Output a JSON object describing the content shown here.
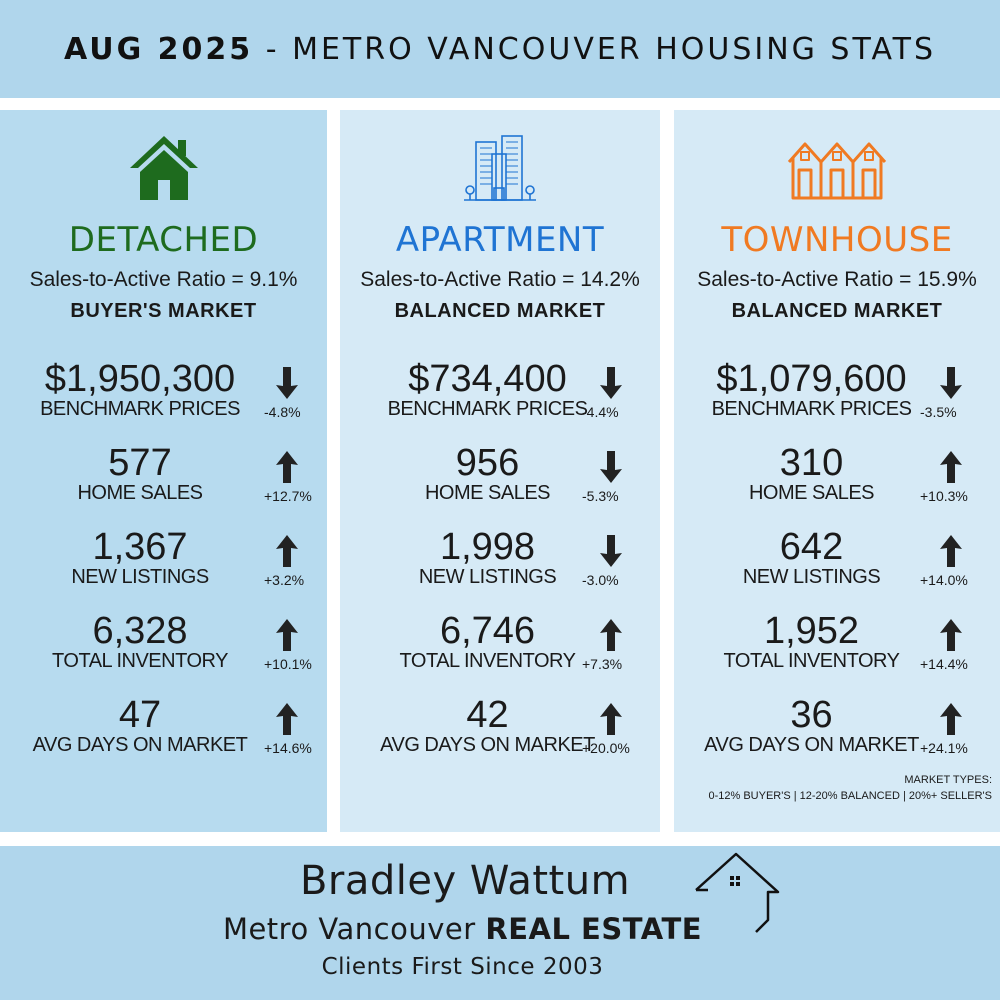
{
  "header": {
    "title_bold": "AUG 2025",
    "title_rest": " - METRO VANCOUVER HOUSING STATS"
  },
  "colors": {
    "header_bg": "#b0d6ec",
    "detached": "#1e6b1e",
    "apartment": "#1f74d3",
    "townhouse": "#f07a22",
    "arrow": "#222222"
  },
  "columns": [
    {
      "icon": "house-icon",
      "title": "DETACHED",
      "ratio": "Sales-to-Active Ratio = 9.1%",
      "market": "BUYER'S MARKET",
      "stats": [
        {
          "value": "$1,950,300",
          "label": "BENCHMARK PRICES",
          "direction": "down",
          "change": "-4.8%"
        },
        {
          "value": "577",
          "label": "HOME SALES",
          "direction": "up",
          "change": "+12.7%"
        },
        {
          "value": "1,367",
          "label": "NEW LISTINGS",
          "direction": "up",
          "change": "+3.2%"
        },
        {
          "value": "6,328",
          "label": "TOTAL INVENTORY",
          "direction": "up",
          "change": "+10.1%"
        },
        {
          "value": "47",
          "label": "AVG DAYS ON MARKET",
          "direction": "up",
          "change": "+14.6%"
        }
      ]
    },
    {
      "icon": "apartment-building-icon",
      "title": "APARTMENT",
      "ratio": "Sales-to-Active Ratio = 14.2%",
      "market": "BALANCED MARKET",
      "stats": [
        {
          "value": "$734,400",
          "label": "BENCHMARK PRICES",
          "direction": "down",
          "change": "-4.4%"
        },
        {
          "value": "956",
          "label": "HOME SALES",
          "direction": "down",
          "change": "-5.3%"
        },
        {
          "value": "1,998",
          "label": "NEW LISTINGS",
          "direction": "down",
          "change": "-3.0%"
        },
        {
          "value": "6,746",
          "label": "TOTAL INVENTORY",
          "direction": "up",
          "change": "+7.3%"
        },
        {
          "value": "42",
          "label": "AVG DAYS ON MARKET",
          "direction": "up",
          "change": "+20.0%"
        }
      ]
    },
    {
      "icon": "townhouse-icon",
      "title": "TOWNHOUSE",
      "ratio": "Sales-to-Active Ratio = 15.9%",
      "market": "BALANCED MARKET",
      "stats": [
        {
          "value": "$1,079,600",
          "label": "BENCHMARK PRICES",
          "direction": "down",
          "change": "-3.5%"
        },
        {
          "value": "310",
          "label": "HOME SALES",
          "direction": "up",
          "change": "+10.3%"
        },
        {
          "value": "642",
          "label": "NEW LISTINGS",
          "direction": "up",
          "change": "+14.0%"
        },
        {
          "value": "1,952",
          "label": "TOTAL INVENTORY",
          "direction": "up",
          "change": "+14.4%"
        },
        {
          "value": "36",
          "label": "AVG DAYS ON MARKET",
          "direction": "up",
          "change": "+24.1%"
        }
      ]
    }
  ],
  "legend": {
    "line1": "MARKET TYPES:",
    "line2": "0-12% BUYER'S | 12-20% BALANCED | 20%+ SELLER'S"
  },
  "footer": {
    "name": "Bradley Wattum",
    "line2_regular": "Metro Vancouver ",
    "line2_bold": "REAL ESTATE",
    "tagline": "Clients First Since 2003",
    "logo_icon": "house-outline-logo-icon"
  }
}
